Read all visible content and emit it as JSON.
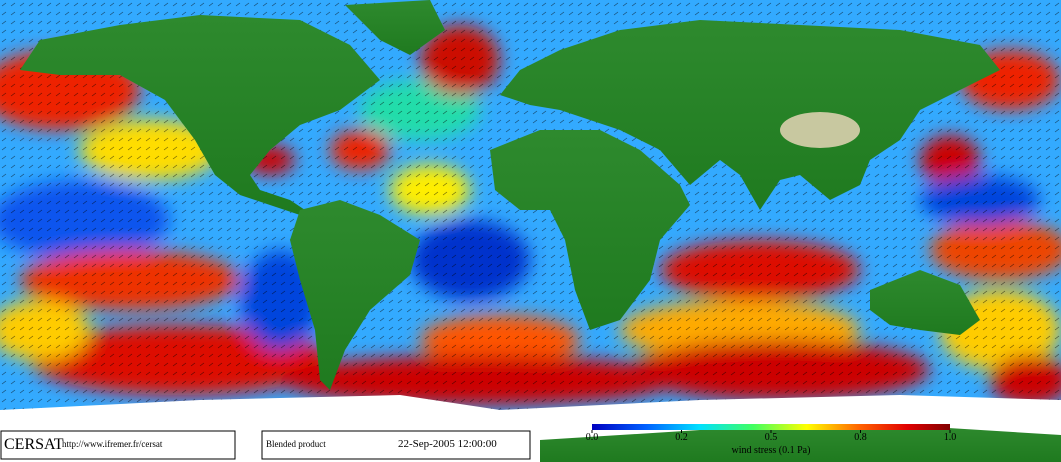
{
  "footer": {
    "logo": "CERSAT",
    "url": "http://www.ifremer.fr/cersat",
    "product": "Blended product",
    "date": "22-Sep-2005 12:00:00"
  },
  "colorbar": {
    "ticks": [
      {
        "value": 0,
        "label": "0.0"
      },
      0.2,
      0.5,
      0.8,
      {
        "value": 1,
        "label": "1.0"
      }
    ],
    "label": "wind stress (0.1 Pa)"
  }
}
